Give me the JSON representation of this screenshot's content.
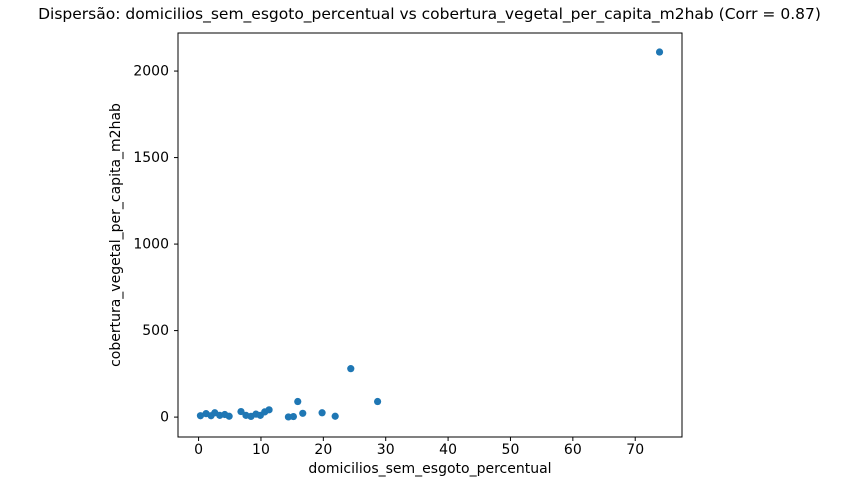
{
  "chart_data": {
    "type": "scatter",
    "title": "Dispersão: domicilios_sem_esgoto_percentual vs cobertura_vegetal_per_capita_m2hab (Corr = 0.87)",
    "xlabel": "domicilios_sem_esgoto_percentual",
    "ylabel": "cobertura_vegetal_per_capita_m2hab",
    "correlation": 0.87,
    "marker_color": "#1f77b4",
    "axis_color": "#000000",
    "grid": false,
    "legend": null,
    "xlim": [
      -3.3,
      77.5
    ],
    "ylim": [
      -115,
      2220
    ],
    "xticks": [
      0,
      10,
      20,
      30,
      40,
      50,
      60,
      70
    ],
    "yticks": [
      0,
      500,
      1000,
      1500,
      2000
    ],
    "points": [
      [
        0.3,
        8
      ],
      [
        1.2,
        20
      ],
      [
        2.0,
        8
      ],
      [
        2.6,
        25
      ],
      [
        3.4,
        10
      ],
      [
        4.2,
        15
      ],
      [
        4.9,
        5
      ],
      [
        6.8,
        32
      ],
      [
        7.6,
        10
      ],
      [
        8.4,
        4
      ],
      [
        9.2,
        17
      ],
      [
        9.9,
        10
      ],
      [
        10.6,
        30
      ],
      [
        11.3,
        42
      ],
      [
        14.4,
        1
      ],
      [
        15.2,
        3
      ],
      [
        15.9,
        90
      ],
      [
        16.7,
        22
      ],
      [
        19.8,
        25
      ],
      [
        21.9,
        5
      ],
      [
        24.4,
        280
      ],
      [
        28.7,
        90
      ],
      [
        73.9,
        2110
      ]
    ]
  }
}
